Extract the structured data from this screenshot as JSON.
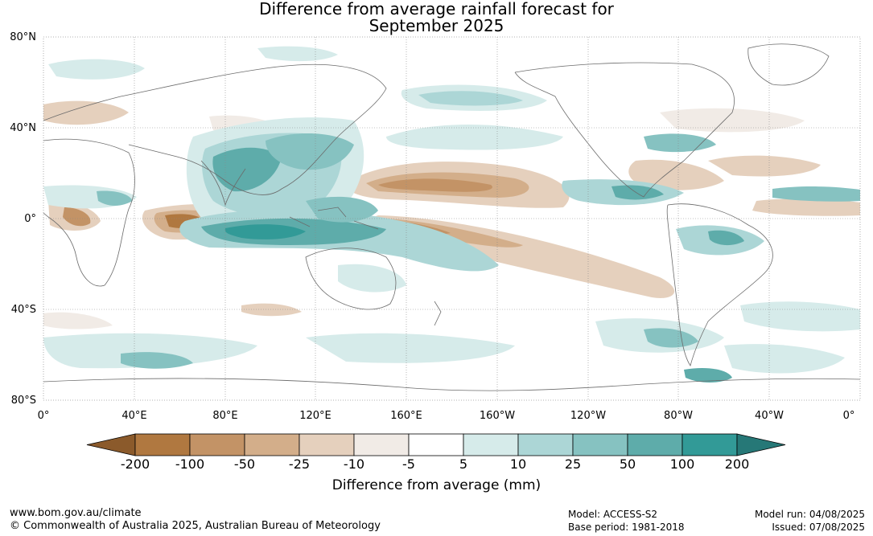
{
  "title_line1": "Difference from average rainfall forecast for",
  "title_line2": "September 2025",
  "lat_labels": [
    "80°N",
    "40°N",
    "0°",
    "40°S",
    "80°S"
  ],
  "lon_labels": [
    "0°",
    "40°E",
    "80°E",
    "120°E",
    "160°E",
    "160°W",
    "120°W",
    "80°W",
    "40°W",
    "0°"
  ],
  "colorbar": {
    "labels": [
      "-200",
      "-100",
      "-50",
      "-25",
      "-10",
      "-5",
      "5",
      "10",
      "25",
      "50",
      "100",
      "200"
    ],
    "colors": [
      "#8b5a2b",
      "#b07840",
      "#c39366",
      "#d3ae8a",
      "#e5d0bd",
      "#f1ebe6",
      "#ffffff",
      "#d6ebea",
      "#acd6d6",
      "#86c2c1",
      "#5eacaa",
      "#329a97",
      "#267877"
    ],
    "title": "Difference from average (mm)"
  },
  "footer": {
    "website": "www.bom.gov.au/climate",
    "copyright": "© Commonwealth of Australia 2025, Australian Bureau of Meteorology",
    "model": "Model: ACCESS-S2",
    "base_period": "Base period: 1981-2018",
    "model_run": "Model run: 04/08/2025",
    "issued": "Issued: 07/08/2025"
  }
}
